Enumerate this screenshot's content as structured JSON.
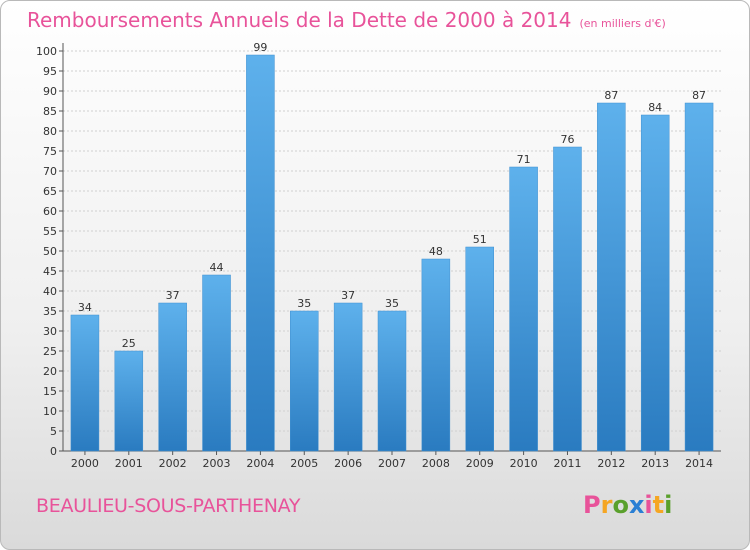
{
  "header": {
    "title": "Remboursements Annuels de la Dette de 2000 à 2014",
    "unit": "(en milliers d'€)"
  },
  "footer": {
    "place": "BEAULIEU-SOUS-PARTHENAY",
    "logo_letters": [
      "P",
      "r",
      "o",
      "x",
      "i",
      "t",
      "i"
    ],
    "logo_colors": [
      "#e8539a",
      "#f5a623",
      "#5aa02c",
      "#2a7fd4",
      "#e8539a",
      "#f5a623",
      "#5aa02c"
    ]
  },
  "chart_data": {
    "type": "bar",
    "categories": [
      "2000",
      "2001",
      "2002",
      "2003",
      "2004",
      "2005",
      "2006",
      "2007",
      "2008",
      "2009",
      "2010",
      "2011",
      "2012",
      "2013",
      "2014"
    ],
    "values": [
      34,
      25,
      37,
      44,
      99,
      35,
      37,
      35,
      48,
      51,
      71,
      76,
      87,
      84,
      87
    ],
    "data_labels": [
      "34",
      "25",
      "37",
      "44",
      "99",
      "35",
      "37",
      "35",
      "48",
      "51",
      "71",
      "76",
      "87",
      "84",
      "87"
    ],
    "y_ticks": [
      "0",
      "5",
      "10",
      "15",
      "20",
      "25",
      "30",
      "35",
      "40",
      "45",
      "50",
      "55",
      "60",
      "65",
      "70",
      "75",
      "80",
      "85",
      "90",
      "95",
      "100"
    ],
    "ylim": [
      0,
      100
    ],
    "grid": true,
    "bar_color_top": "#5eb1ec",
    "bar_color_bottom": "#2a7bc0"
  }
}
